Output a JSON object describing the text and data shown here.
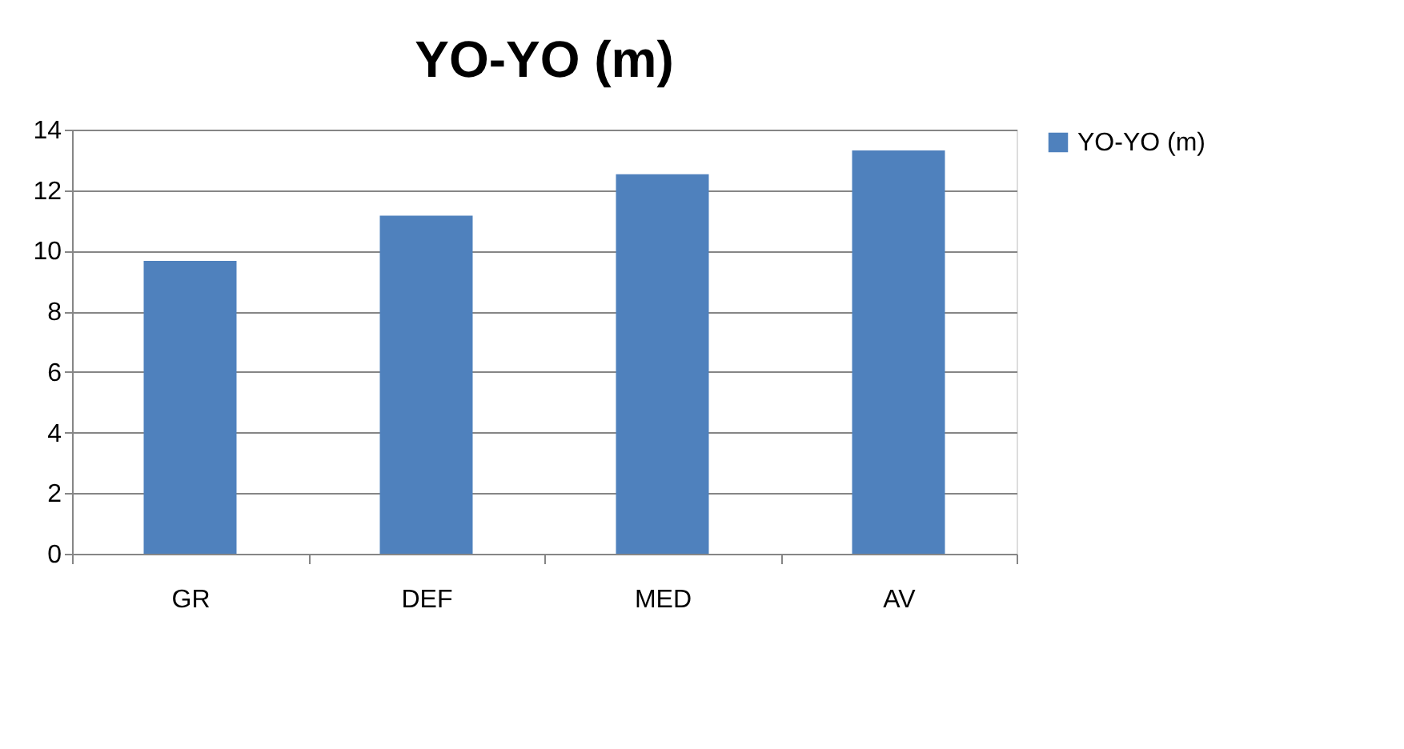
{
  "chart_data": {
    "type": "bar",
    "title": "YO-YO (m)",
    "categories": [
      "GR",
      "DEF",
      "MED",
      "AV"
    ],
    "series": [
      {
        "name": "YO-YO (m)",
        "color": "#4f81bd",
        "values": [
          9.67,
          11.16,
          12.53,
          13.31
        ]
      }
    ],
    "ylim": [
      0,
      14
    ],
    "yticks": [
      0,
      2,
      4,
      6,
      8,
      10,
      12,
      14
    ],
    "grid": "y",
    "legend": "right"
  }
}
